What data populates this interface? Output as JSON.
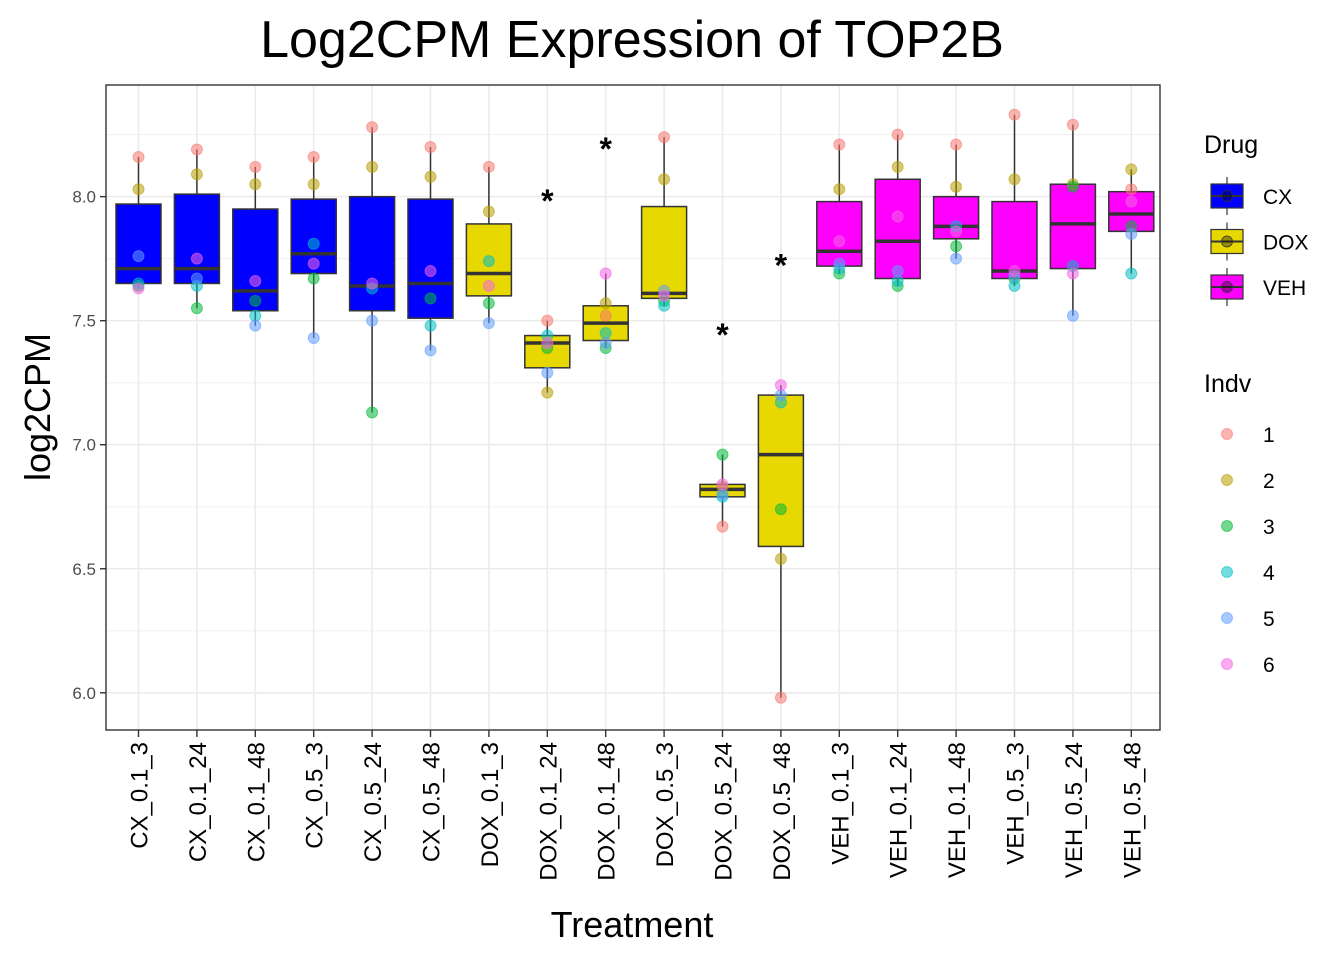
{
  "chart_data": {
    "type": "box",
    "title": "Log2CPM Expression of TOP2B",
    "xlabel": "Treatment",
    "ylabel": "log2CPM",
    "ylim": [
      5.85,
      8.45
    ],
    "yticks": [
      6.0,
      6.5,
      7.0,
      7.5,
      8.0
    ],
    "ytick_labels": [
      "6.0",
      "6.5",
      "7.0",
      "7.5",
      "8.0"
    ],
    "grid": true,
    "legend_position": "right",
    "categories": [
      "CX_0.1_3",
      "CX_0.1_24",
      "CX_0.1_48",
      "CX_0.5_3",
      "CX_0.5_24",
      "CX_0.5_48",
      "DOX_0.1_3",
      "DOX_0.1_24",
      "DOX_0.1_48",
      "DOX_0.5_3",
      "DOX_0.5_24",
      "DOX_0.5_48",
      "VEH_0.1_3",
      "VEH_0.1_24",
      "VEH_0.1_48",
      "VEH_0.5_3",
      "VEH_0.5_24",
      "VEH_0.5_48"
    ],
    "drug": [
      "CX",
      "CX",
      "CX",
      "CX",
      "CX",
      "CX",
      "DOX",
      "DOX",
      "DOX",
      "DOX",
      "DOX",
      "DOX",
      "VEH",
      "VEH",
      "VEH",
      "VEH",
      "VEH",
      "VEH"
    ],
    "boxes": [
      {
        "q1": 7.65,
        "median": 7.71,
        "q3": 7.97,
        "whisker_low": 7.63,
        "whisker_high": 8.16
      },
      {
        "q1": 7.65,
        "median": 7.71,
        "q3": 8.01,
        "whisker_low": 7.55,
        "whisker_high": 8.19
      },
      {
        "q1": 7.54,
        "median": 7.62,
        "q3": 7.95,
        "whisker_low": 7.48,
        "whisker_high": 8.12
      },
      {
        "q1": 7.69,
        "median": 7.77,
        "q3": 7.99,
        "whisker_low": 7.43,
        "whisker_high": 8.16
      },
      {
        "q1": 7.54,
        "median": 7.64,
        "q3": 8.0,
        "whisker_low": 7.13,
        "whisker_high": 8.28
      },
      {
        "q1": 7.51,
        "median": 7.65,
        "q3": 7.99,
        "whisker_low": 7.38,
        "whisker_high": 8.2
      },
      {
        "q1": 7.6,
        "median": 7.69,
        "q3": 7.89,
        "whisker_low": 7.49,
        "whisker_high": 8.12
      },
      {
        "q1": 7.31,
        "median": 7.41,
        "q3": 7.44,
        "whisker_low": 7.21,
        "whisker_high": 7.5
      },
      {
        "q1": 7.42,
        "median": 7.49,
        "q3": 7.56,
        "whisker_low": 7.39,
        "whisker_high": 7.69
      },
      {
        "q1": 7.59,
        "median": 7.61,
        "q3": 7.96,
        "whisker_low": 7.56,
        "whisker_high": 8.24
      },
      {
        "q1": 6.79,
        "median": 6.82,
        "q3": 6.84,
        "whisker_low": 6.67,
        "whisker_high": 6.96
      },
      {
        "q1": 6.59,
        "median": 6.96,
        "q3": 7.2,
        "whisker_low": 5.98,
        "whisker_high": 7.24
      },
      {
        "q1": 7.72,
        "median": 7.78,
        "q3": 7.98,
        "whisker_low": 7.69,
        "whisker_high": 8.21
      },
      {
        "q1": 7.67,
        "median": 7.82,
        "q3": 8.07,
        "whisker_low": 7.64,
        "whisker_high": 8.25
      },
      {
        "q1": 7.83,
        "median": 7.88,
        "q3": 8.0,
        "whisker_low": 7.75,
        "whisker_high": 8.21
      },
      {
        "q1": 7.67,
        "median": 7.7,
        "q3": 7.98,
        "whisker_low": 7.64,
        "whisker_high": 8.33
      },
      {
        "q1": 7.71,
        "median": 7.89,
        "q3": 8.05,
        "whisker_low": 7.52,
        "whisker_high": 8.29
      },
      {
        "q1": 7.86,
        "median": 7.93,
        "q3": 8.02,
        "whisker_low": 7.69,
        "whisker_high": 8.11
      }
    ],
    "points": [
      [
        8.16,
        8.03,
        7.64,
        7.65,
        7.76,
        7.63
      ],
      [
        8.19,
        8.09,
        7.55,
        7.64,
        7.67,
        7.75
      ],
      [
        8.12,
        8.05,
        7.58,
        7.52,
        7.48,
        7.66
      ],
      [
        8.16,
        8.05,
        7.67,
        7.81,
        7.43,
        7.73
      ],
      [
        8.28,
        8.12,
        7.13,
        7.63,
        7.5,
        7.65
      ],
      [
        8.2,
        8.08,
        7.59,
        7.48,
        7.38,
        7.7
      ],
      [
        8.12,
        7.94,
        7.57,
        7.74,
        7.49,
        7.64
      ],
      [
        7.5,
        7.21,
        7.39,
        7.44,
        7.29,
        7.41
      ],
      [
        7.52,
        7.57,
        7.39,
        7.45,
        7.41,
        7.69
      ],
      [
        8.24,
        8.07,
        7.58,
        7.56,
        7.62,
        7.6
      ],
      [
        6.67,
        6.83,
        6.96,
        6.79,
        6.8,
        6.84
      ],
      [
        5.98,
        6.54,
        6.74,
        7.17,
        7.2,
        7.24
      ],
      [
        8.21,
        8.03,
        7.69,
        7.71,
        7.73,
        7.82
      ],
      [
        8.25,
        8.12,
        7.64,
        7.66,
        7.7,
        7.92
      ],
      [
        8.21,
        8.04,
        7.8,
        7.88,
        7.75,
        7.86
      ],
      [
        8.33,
        8.07,
        7.67,
        7.64,
        7.68,
        7.7
      ],
      [
        8.29,
        8.05,
        8.04,
        7.72,
        7.52,
        7.69
      ],
      [
        8.03,
        8.11,
        7.88,
        7.69,
        7.85,
        7.98
      ]
    ],
    "annotations": [
      {
        "category": "DOX_0.1_24",
        "text": "*",
        "y": 8.01
      },
      {
        "category": "DOX_0.1_48",
        "text": "*",
        "y": 8.22
      },
      {
        "category": "DOX_0.5_24",
        "text": "*",
        "y": 7.47
      },
      {
        "category": "DOX_0.5_48",
        "text": "*",
        "y": 7.75
      }
    ],
    "legend_drug": {
      "title": "Drug",
      "items": [
        {
          "label": "CX",
          "color": "#0000ff"
        },
        {
          "label": "DOX",
          "color": "#e6d800"
        },
        {
          "label": "VEH",
          "color": "#ff00ff"
        }
      ]
    },
    "legend_indv": {
      "title": "Indv",
      "items": [
        {
          "label": "1",
          "color": "#f8766d"
        },
        {
          "label": "2",
          "color": "#b79f00"
        },
        {
          "label": "3",
          "color": "#00ba38"
        },
        {
          "label": "4",
          "color": "#00bfc4"
        },
        {
          "label": "5",
          "color": "#619cff"
        },
        {
          "label": "6",
          "color": "#f564e3"
        }
      ]
    }
  }
}
